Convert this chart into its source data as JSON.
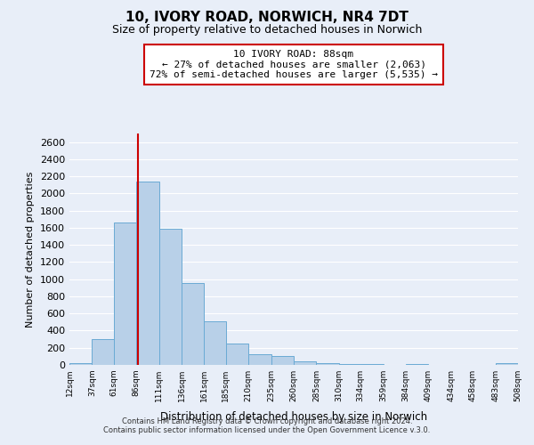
{
  "title": "10, IVORY ROAD, NORWICH, NR4 7DT",
  "subtitle": "Size of property relative to detached houses in Norwich",
  "xlabel": "Distribution of detached houses by size in Norwich",
  "ylabel": "Number of detached properties",
  "bar_color": "#b8d0e8",
  "bar_edge_color": "#6aaad4",
  "background_color": "#e8eef8",
  "grid_color": "#ffffff",
  "annotation_box_color": "#cc0000",
  "annotation_line1": "10 IVORY ROAD: 88sqm",
  "annotation_line2": "← 27% of detached houses are smaller (2,063)",
  "annotation_line3": "72% of semi-detached houses are larger (5,535) →",
  "red_line_x": 88,
  "bins": [
    12,
    37,
    61,
    86,
    111,
    136,
    161,
    185,
    210,
    235,
    260,
    285,
    310,
    334,
    359,
    384,
    409,
    434,
    458,
    483,
    508
  ],
  "bin_labels": [
    "12sqm",
    "37sqm",
    "61sqm",
    "86sqm",
    "111sqm",
    "136sqm",
    "161sqm",
    "185sqm",
    "210sqm",
    "235sqm",
    "260sqm",
    "285sqm",
    "310sqm",
    "334sqm",
    "359sqm",
    "384sqm",
    "409sqm",
    "434sqm",
    "458sqm",
    "483sqm",
    "508sqm"
  ],
  "bar_heights": [
    20,
    300,
    1660,
    2140,
    1590,
    960,
    505,
    250,
    125,
    100,
    40,
    25,
    15,
    8,
    5,
    10,
    5,
    5,
    5,
    20
  ],
  "ylim": [
    0,
    2700
  ],
  "yticks": [
    0,
    200,
    400,
    600,
    800,
    1000,
    1200,
    1400,
    1600,
    1800,
    2000,
    2200,
    2400,
    2600
  ],
  "footer_line1": "Contains HM Land Registry data © Crown copyright and database right 2024.",
  "footer_line2": "Contains public sector information licensed under the Open Government Licence v.3.0."
}
